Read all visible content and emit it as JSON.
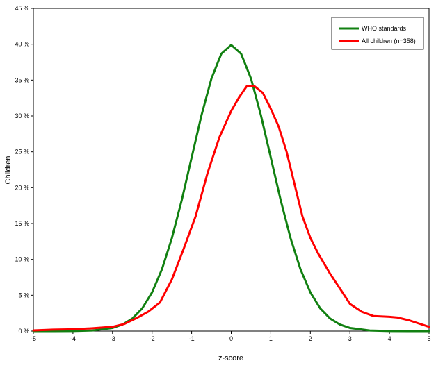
{
  "chart_data": {
    "type": "line",
    "title": "",
    "xlabel": "z-score",
    "ylabel": "Children",
    "xlim": [
      -5,
      5
    ],
    "ylim": [
      0,
      45
    ],
    "x_ticks": [
      "-5",
      "-4",
      "-3",
      "-2",
      "-1",
      "0",
      "1",
      "2",
      "3",
      "4",
      "5"
    ],
    "y_ticks": [
      "0 %",
      "5 %",
      "10 %",
      "15 %",
      "20 %",
      "25 %",
      "30 %",
      "35 %",
      "40 %",
      "45 %"
    ],
    "grid": false,
    "legend_position": "top-right",
    "series": [
      {
        "name": "WHO standards",
        "color": "#118011",
        "x": [
          -5,
          -4.5,
          -4,
          -3.5,
          -3,
          -2.75,
          -2.5,
          -2.25,
          -2,
          -1.75,
          -1.5,
          -1.25,
          -1,
          -0.75,
          -0.5,
          -0.25,
          0,
          0.25,
          0.5,
          0.75,
          1,
          1.25,
          1.5,
          1.75,
          2,
          2.25,
          2.5,
          2.75,
          3,
          3.5,
          4,
          4.5,
          5
        ],
        "y": [
          0,
          0,
          0.01,
          0.09,
          0.44,
          0.91,
          1.75,
          3.17,
          5.4,
          8.63,
          12.95,
          18.26,
          24.2,
          30.11,
          35.21,
          38.67,
          39.89,
          38.67,
          35.21,
          30.11,
          24.2,
          18.26,
          12.95,
          8.63,
          5.4,
          3.17,
          1.75,
          0.91,
          0.44,
          0.09,
          0.01,
          0,
          0
        ]
      },
      {
        "name": "All children (n=358)",
        "color": "#ff0000",
        "x": [
          -5,
          -4.5,
          -4,
          -3.5,
          -3,
          -2.7,
          -2.4,
          -2.1,
          -1.8,
          -1.5,
          -1.2,
          -0.9,
          -0.6,
          -0.3,
          0,
          0.2,
          0.4,
          0.6,
          0.8,
          1.0,
          1.2,
          1.4,
          1.6,
          1.8,
          2.0,
          2.2,
          2.5,
          2.8,
          3.0,
          3.3,
          3.6,
          4.0,
          4.2,
          4.5,
          5.0
        ],
        "y": [
          0.1,
          0.2,
          0.25,
          0.4,
          0.6,
          1.0,
          1.8,
          2.7,
          4.0,
          7.2,
          11.5,
          16.0,
          22.0,
          27.0,
          30.7,
          32.6,
          34.2,
          34.1,
          33.2,
          31.0,
          28.5,
          25.0,
          20.5,
          16.0,
          13.0,
          10.8,
          8.0,
          5.5,
          3.8,
          2.7,
          2.1,
          2.0,
          1.9,
          1.5,
          0.6
        ]
      }
    ]
  }
}
